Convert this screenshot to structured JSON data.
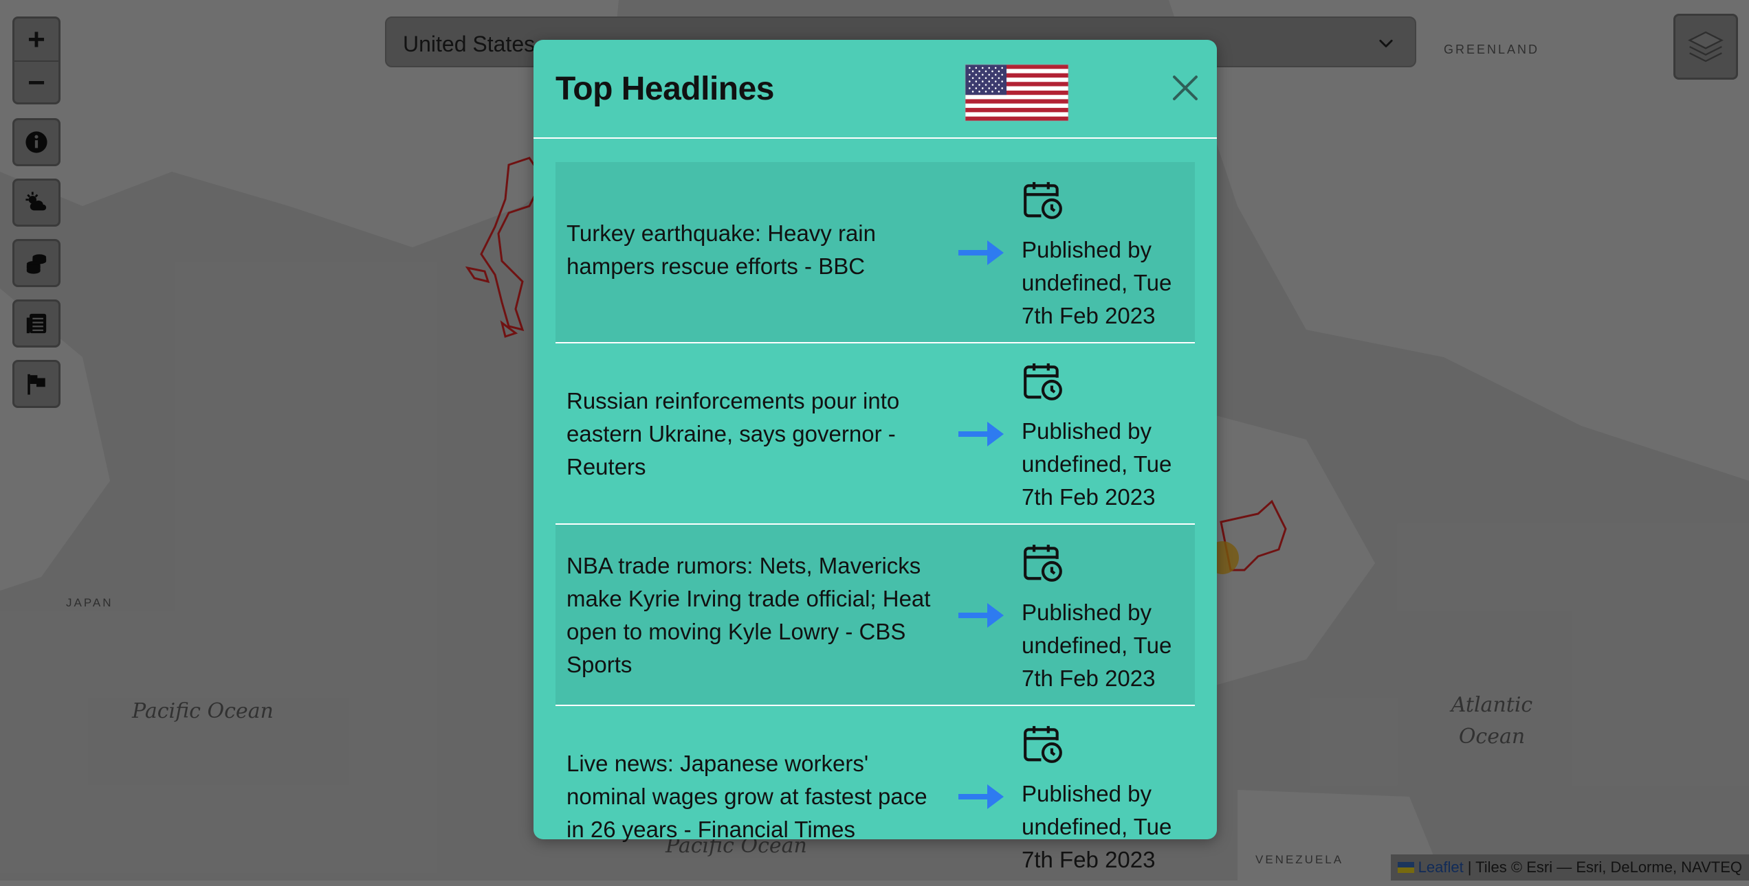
{
  "map": {
    "labels": {
      "greenland": "GREENLAND",
      "japan": "JAPAN",
      "pacific1": "Pacific Ocean",
      "pacific2": "Pacific Ocean",
      "atlantic": "Atlantic Ocean",
      "venezuela": "VENEZUELA"
    },
    "border_color": "#cc2222"
  },
  "controls": {
    "zoom_in": "+",
    "zoom_out": "−",
    "buttons": [
      "info-icon",
      "weather-icon",
      "coins-icon",
      "news-icon",
      "flag-icon"
    ]
  },
  "country_select": {
    "value": "United States"
  },
  "attribution": {
    "leaflet": "Leaflet",
    "rest": "| Tiles © Esri — Esri, DeLorme, NAVTEQ"
  },
  "modal": {
    "title": "Top Headlines",
    "flag_icon": "us-flag",
    "background": "#4ecdb6",
    "articles": [
      {
        "headline": "Turkey earthquake: Heavy rain hampers rescue efforts - BBC",
        "published": "Published by undefined, Tue 7th Feb 2023"
      },
      {
        "headline": "Russian reinforcements pour into eastern Ukraine, says governor - Reuters",
        "published": "Published by undefined, Tue 7th Feb 2023"
      },
      {
        "headline": "NBA trade rumors: Nets, Mavericks make Kyrie Irving trade official; Heat open to moving Kyle Lowry - CBS Sports",
        "published": "Published by undefined, Tue 7th Feb 2023"
      },
      {
        "headline": "Live news: Japanese workers' nominal wages grow at fastest pace in 26 years - Financial Times",
        "published": "Published by undefined, Tue 7th Feb 2023"
      }
    ]
  }
}
